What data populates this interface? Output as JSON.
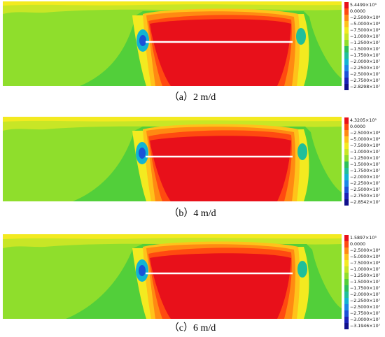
{
  "figures": [
    {
      "caption": "（a）2 m/d",
      "legend": [
        "5.4499×10⁵",
        "0.0000",
        "−2.5000×10⁶",
        "−5.0000×10⁶",
        "−7.5000×10⁶",
        "−1.0000×10⁷",
        "−1.2500×10⁷",
        "−1.5000×10⁷",
        "−1.7500×10⁷",
        "−2.0000×10⁷",
        "−2.2500×10⁷",
        "−2.5000×10⁷",
        "−2.7500×10⁷",
        "−2.8298×10⁷"
      ]
    },
    {
      "caption": "（b）4 m/d",
      "legend": [
        "4.3205×10⁵",
        "0.0000",
        "−2.5000×10⁶",
        "−5.0000×10⁶",
        "−7.5000×10⁶",
        "−1.0000×10⁷",
        "−1.2500×10⁷",
        "−1.5000×10⁷",
        "−1.7500×10⁷",
        "−2.0000×10⁷",
        "−2.2500×10⁷",
        "−2.5000×10⁷",
        "−2.7500×10⁷",
        "−2.8542×10⁷"
      ]
    },
    {
      "caption": "（c）6 m/d",
      "legend": [
        "1.5897×10⁵",
        "0.0000",
        "−2.5000×10⁶",
        "−5.0000×10⁶",
        "−7.5000×10⁶",
        "−1.0000×10⁷",
        "−1.2500×10⁷",
        "−1.5000×10⁷",
        "−1.7500×10⁷",
        "−2.0000×10⁷",
        "−2.2500×10⁷",
        "−2.5000×10⁷",
        "−2.7500×10⁷",
        "−3.0000×10⁷",
        "−3.1946×10⁷"
      ]
    }
  ],
  "palette": [
    "#e8101a",
    "#ff4a10",
    "#ff8a12",
    "#ffc21a",
    "#f3ea20",
    "#c8e626",
    "#8fde2c",
    "#52cf3a",
    "#2cc05a",
    "#1fbf9a",
    "#12b4d2",
    "#1a88e6",
    "#1a52d8",
    "#1a22b8",
    "#10108c"
  ]
}
